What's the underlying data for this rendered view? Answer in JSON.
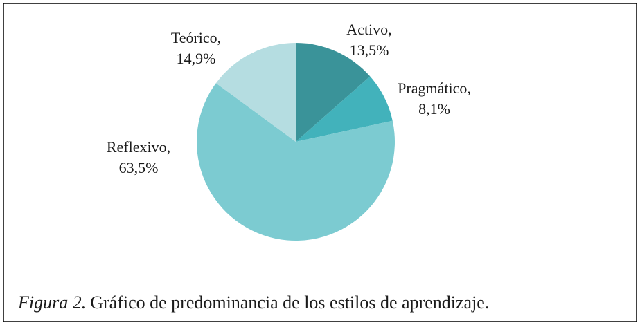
{
  "chart_data": {
    "type": "pie",
    "categories": [
      "Activo,",
      "Pragmático,",
      "Reflexivo,",
      "Teórico,"
    ],
    "values": [
      13.5,
      8.1,
      63.5,
      14.9
    ],
    "value_labels": [
      "13,5%",
      "8,1%",
      "63,5%",
      "14,9%"
    ],
    "colors": [
      "#3a9399",
      "#42b2bb",
      "#7ccbd1",
      "#b5dde1"
    ],
    "caption_label": "Figura 2.",
    "caption": "Gráfico de predominancia de los estilos de aprendizaje."
  }
}
